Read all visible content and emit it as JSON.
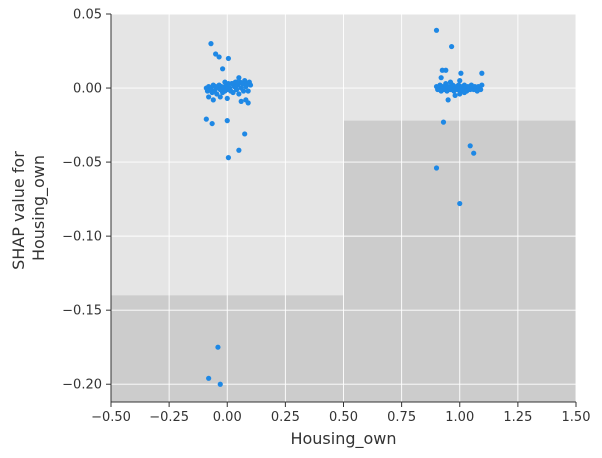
{
  "chart_data": {
    "type": "scatter",
    "title": "",
    "xlabel": "Housing_own",
    "ylabel_lines": [
      "SHAP value for",
      "Housing_own"
    ],
    "xlim": [
      -0.5,
      1.5
    ],
    "ylim": [
      -0.212,
      0.05
    ],
    "x_ticks": [
      -0.5,
      -0.25,
      0.0,
      0.25,
      0.5,
      0.75,
      1.0,
      1.25,
      1.5
    ],
    "x_tick_labels": [
      "−0.50",
      "−0.25",
      "0.00",
      "0.25",
      "0.50",
      "0.75",
      "1.00",
      "1.25",
      "1.50"
    ],
    "y_ticks": [
      0.05,
      0.0,
      -0.05,
      -0.1,
      -0.15,
      -0.2
    ],
    "y_tick_labels": [
      "0.05",
      "0.00",
      "−0.05",
      "−0.10",
      "−0.15",
      "−0.20"
    ],
    "grid": true,
    "colors": {
      "point": "#1e88e5",
      "background_light": "#e5e5e5",
      "background_dark": "#cccccc",
      "grid": "#ffffff",
      "axis": "#333333"
    },
    "background_bars": [
      {
        "x_range": [
          -0.5,
          0.5
        ],
        "top_value": -0.14
      },
      {
        "x_range": [
          0.5,
          1.5
        ],
        "top_value": -0.022
      }
    ],
    "points": [
      {
        "x": -0.09,
        "y": 0.0
      },
      {
        "x": -0.085,
        "y": -0.002
      },
      {
        "x": -0.08,
        "y": 0.001
      },
      {
        "x": -0.075,
        "y": -0.001
      },
      {
        "x": -0.07,
        "y": 0.0
      },
      {
        "x": -0.065,
        "y": -0.003
      },
      {
        "x": -0.06,
        "y": 0.002
      },
      {
        "x": -0.055,
        "y": -0.002
      },
      {
        "x": -0.05,
        "y": 0.001
      },
      {
        "x": -0.045,
        "y": -0.004
      },
      {
        "x": -0.04,
        "y": 0.0
      },
      {
        "x": -0.035,
        "y": 0.002
      },
      {
        "x": -0.03,
        "y": -0.001
      },
      {
        "x": -0.025,
        "y": 0.001
      },
      {
        "x": -0.02,
        "y": -0.003
      },
      {
        "x": -0.015,
        "y": 0.0
      },
      {
        "x": -0.01,
        "y": -0.002
      },
      {
        "x": -0.005,
        "y": 0.002
      },
      {
        "x": 0.0,
        "y": -0.001
      },
      {
        "x": 0.005,
        "y": 0.003
      },
      {
        "x": 0.01,
        "y": 0.0
      },
      {
        "x": 0.015,
        "y": -0.002
      },
      {
        "x": 0.02,
        "y": 0.003
      },
      {
        "x": 0.025,
        "y": -0.003
      },
      {
        "x": 0.03,
        "y": 0.001
      },
      {
        "x": 0.035,
        "y": 0.004
      },
      {
        "x": 0.04,
        "y": -0.001
      },
      {
        "x": 0.045,
        "y": 0.002
      },
      {
        "x": 0.05,
        "y": -0.004
      },
      {
        "x": 0.055,
        "y": 0.004
      },
      {
        "x": 0.06,
        "y": 0.0
      },
      {
        "x": 0.065,
        "y": 0.003
      },
      {
        "x": 0.07,
        "y": -0.002
      },
      {
        "x": 0.075,
        "y": 0.005
      },
      {
        "x": 0.08,
        "y": 0.001
      },
      {
        "x": 0.085,
        "y": 0.003
      },
      {
        "x": 0.09,
        "y": -0.002
      },
      {
        "x": 0.095,
        "y": 0.004
      },
      {
        "x": 0.1,
        "y": 0.002
      },
      {
        "x": -0.08,
        "y": -0.006
      },
      {
        "x": -0.06,
        "y": -0.008
      },
      {
        "x": -0.03,
        "y": -0.006
      },
      {
        "x": 0.0,
        "y": -0.007
      },
      {
        "x": 0.02,
        "y": 0.003
      },
      {
        "x": 0.04,
        "y": 0.004
      },
      {
        "x": 0.06,
        "y": -0.009
      },
      {
        "x": 0.08,
        "y": -0.008
      },
      {
        "x": 0.09,
        "y": -0.01
      },
      {
        "x": -0.01,
        "y": 0.004
      },
      {
        "x": -0.09,
        "y": -0.021
      },
      {
        "x": -0.07,
        "y": 0.03
      },
      {
        "x": -0.05,
        "y": 0.023
      },
      {
        "x": -0.035,
        "y": 0.021
      },
      {
        "x": -0.02,
        "y": 0.013
      },
      {
        "x": -0.065,
        "y": -0.024
      },
      {
        "x": 0.0,
        "y": -0.022
      },
      {
        "x": 0.005,
        "y": 0.02
      },
      {
        "x": 0.05,
        "y": 0.007
      },
      {
        "x": 0.05,
        "y": -0.042
      },
      {
        "x": 0.075,
        "y": -0.031
      },
      {
        "x": 0.005,
        "y": -0.047
      },
      {
        "x": -0.04,
        "y": -0.175
      },
      {
        "x": -0.08,
        "y": -0.196
      },
      {
        "x": -0.03,
        "y": -0.2
      },
      {
        "x": 0.9,
        "y": 0.001
      },
      {
        "x": 0.905,
        "y": -0.001
      },
      {
        "x": 0.91,
        "y": 0.0
      },
      {
        "x": 0.915,
        "y": 0.002
      },
      {
        "x": 0.92,
        "y": -0.002
      },
      {
        "x": 0.925,
        "y": 0.001
      },
      {
        "x": 0.93,
        "y": -0.001
      },
      {
        "x": 0.935,
        "y": 0.0
      },
      {
        "x": 0.94,
        "y": 0.002
      },
      {
        "x": 0.945,
        "y": -0.002
      },
      {
        "x": 0.95,
        "y": 0.001
      },
      {
        "x": 0.955,
        "y": 0.0
      },
      {
        "x": 0.96,
        "y": -0.001
      },
      {
        "x": 0.965,
        "y": 0.001
      },
      {
        "x": 0.97,
        "y": 0.002
      },
      {
        "x": 0.975,
        "y": -0.002
      },
      {
        "x": 0.98,
        "y": 0.0
      },
      {
        "x": 0.985,
        "y": 0.001
      },
      {
        "x": 0.99,
        "y": -0.001
      },
      {
        "x": 0.995,
        "y": 0.002
      },
      {
        "x": 1.0,
        "y": 0.0
      },
      {
        "x": 1.005,
        "y": -0.002
      },
      {
        "x": 1.01,
        "y": 0.001
      },
      {
        "x": 1.015,
        "y": -0.001
      },
      {
        "x": 1.02,
        "y": 0.002
      },
      {
        "x": 1.025,
        "y": 0.0
      },
      {
        "x": 1.03,
        "y": -0.002
      },
      {
        "x": 1.035,
        "y": 0.001
      },
      {
        "x": 1.04,
        "y": 0.0
      },
      {
        "x": 1.045,
        "y": -0.001
      },
      {
        "x": 1.05,
        "y": 0.002
      },
      {
        "x": 1.055,
        "y": 0.0
      },
      {
        "x": 1.06,
        "y": -0.001
      },
      {
        "x": 1.065,
        "y": 0.001
      },
      {
        "x": 1.07,
        "y": 0.0
      },
      {
        "x": 1.075,
        "y": -0.002
      },
      {
        "x": 1.08,
        "y": 0.001
      },
      {
        "x": 1.085,
        "y": 0.0
      },
      {
        "x": 1.09,
        "y": -0.001
      },
      {
        "x": 1.095,
        "y": 0.002
      },
      {
        "x": 0.92,
        "y": 0.007
      },
      {
        "x": 0.94,
        "y": 0.003
      },
      {
        "x": 0.96,
        "y": 0.004
      },
      {
        "x": 1.0,
        "y": 0.005
      },
      {
        "x": 1.0,
        "y": -0.004
      },
      {
        "x": 0.95,
        "y": -0.008
      },
      {
        "x": 1.02,
        "y": -0.003
      },
      {
        "x": 0.98,
        "y": -0.005
      },
      {
        "x": 0.9,
        "y": 0.039
      },
      {
        "x": 0.965,
        "y": 0.028
      },
      {
        "x": 0.925,
        "y": 0.012
      },
      {
        "x": 0.94,
        "y": 0.012
      },
      {
        "x": 1.005,
        "y": 0.01
      },
      {
        "x": 1.095,
        "y": 0.01
      },
      {
        "x": 0.93,
        "y": -0.023
      },
      {
        "x": 1.045,
        "y": -0.039
      },
      {
        "x": 1.06,
        "y": -0.044
      },
      {
        "x": 0.9,
        "y": -0.054
      },
      {
        "x": 1.0,
        "y": -0.078
      }
    ]
  }
}
